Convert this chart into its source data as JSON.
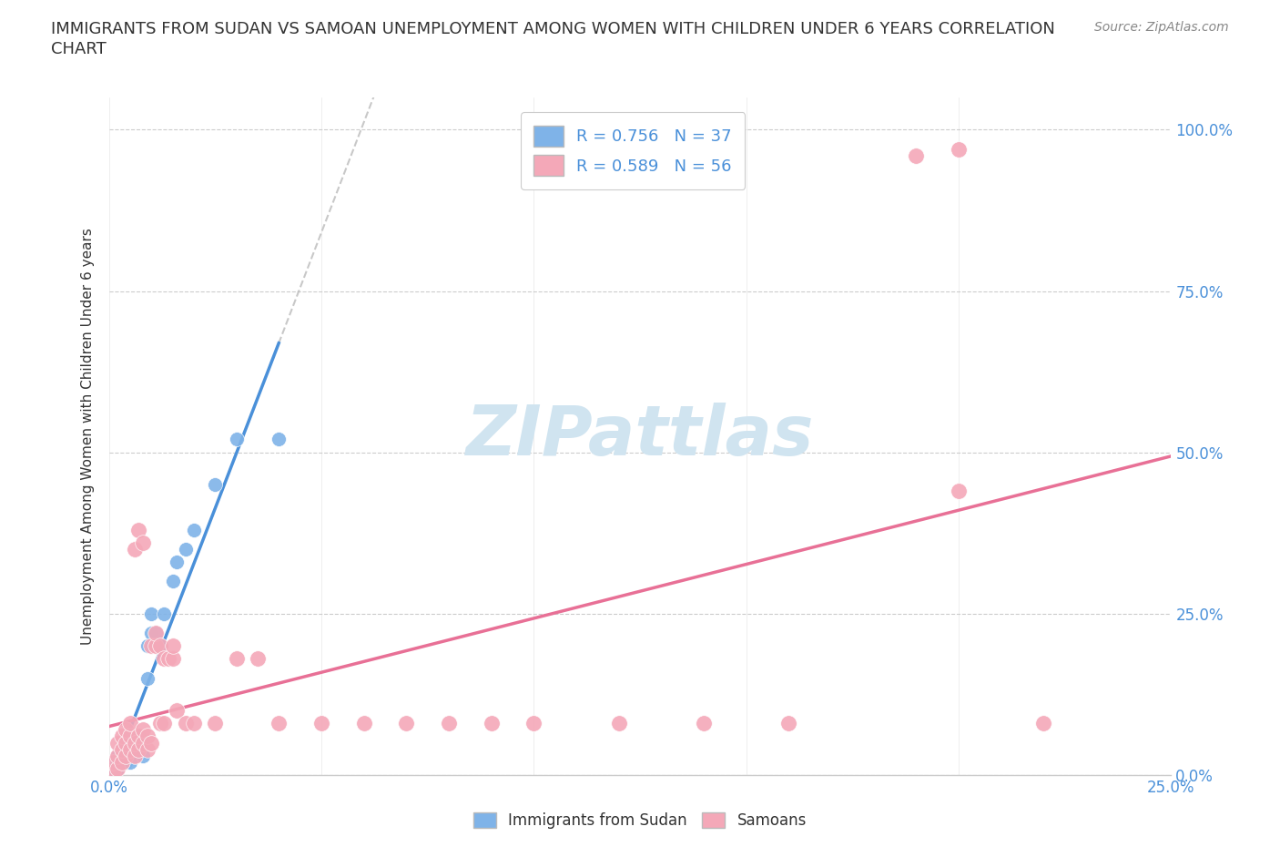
{
  "title": "IMMIGRANTS FROM SUDAN VS SAMOAN UNEMPLOYMENT AMONG WOMEN WITH CHILDREN UNDER 6 YEARS CORRELATION\nCHART",
  "source": "Source: ZipAtlas.com",
  "xlabel": "",
  "ylabel": "Unemployment Among Women with Children Under 6 years",
  "xlim": [
    0.0,
    0.25
  ],
  "ylim": [
    0.0,
    1.05
  ],
  "xticks": [
    0.0,
    0.05,
    0.1,
    0.15,
    0.2,
    0.25
  ],
  "xtick_labels": [
    "0.0%",
    "",
    "",
    "",
    "",
    "25.0%"
  ],
  "ytick_labels": [
    "0.0%",
    "25.0%",
    "50.0%",
    "75.0%",
    "100.0%"
  ],
  "yticks": [
    0.0,
    0.25,
    0.5,
    0.75,
    1.0
  ],
  "sudan_color": "#7fb3e8",
  "samoan_color": "#f4a8b8",
  "sudan_line_color": "#4a90d9",
  "samoan_line_color": "#e87096",
  "sudan_R": 0.756,
  "sudan_N": 37,
  "samoan_R": 0.589,
  "samoan_N": 56,
  "legend_label_sudan": "Immigrants from Sudan",
  "legend_label_samoan": "Samoans",
  "sudan_points": [
    [
      0.0005,
      0.005
    ],
    [
      0.001,
      0.01
    ],
    [
      0.001,
      0.02
    ],
    [
      0.0015,
      0.015
    ],
    [
      0.002,
      0.01
    ],
    [
      0.002,
      0.02
    ],
    [
      0.002,
      0.03
    ],
    [
      0.003,
      0.02
    ],
    [
      0.003,
      0.03
    ],
    [
      0.003,
      0.04
    ],
    [
      0.004,
      0.02
    ],
    [
      0.004,
      0.03
    ],
    [
      0.004,
      0.05
    ],
    [
      0.005,
      0.02
    ],
    [
      0.005,
      0.04
    ],
    [
      0.005,
      0.06
    ],
    [
      0.006,
      0.03
    ],
    [
      0.006,
      0.05
    ],
    [
      0.007,
      0.04
    ],
    [
      0.007,
      0.06
    ],
    [
      0.008,
      0.03
    ],
    [
      0.008,
      0.05
    ],
    [
      0.009,
      0.15
    ],
    [
      0.009,
      0.2
    ],
    [
      0.01,
      0.22
    ],
    [
      0.01,
      0.25
    ],
    [
      0.011,
      0.2
    ],
    [
      0.011,
      0.22
    ],
    [
      0.012,
      0.2
    ],
    [
      0.013,
      0.25
    ],
    [
      0.015,
      0.3
    ],
    [
      0.016,
      0.33
    ],
    [
      0.018,
      0.35
    ],
    [
      0.02,
      0.38
    ],
    [
      0.025,
      0.45
    ],
    [
      0.03,
      0.52
    ],
    [
      0.04,
      0.52
    ]
  ],
  "samoan_points": [
    [
      0.001,
      0.005
    ],
    [
      0.001,
      0.02
    ],
    [
      0.002,
      0.01
    ],
    [
      0.002,
      0.03
    ],
    [
      0.002,
      0.05
    ],
    [
      0.003,
      0.02
    ],
    [
      0.003,
      0.04
    ],
    [
      0.003,
      0.06
    ],
    [
      0.004,
      0.03
    ],
    [
      0.004,
      0.05
    ],
    [
      0.004,
      0.07
    ],
    [
      0.005,
      0.04
    ],
    [
      0.005,
      0.06
    ],
    [
      0.005,
      0.08
    ],
    [
      0.006,
      0.03
    ],
    [
      0.006,
      0.05
    ],
    [
      0.006,
      0.35
    ],
    [
      0.007,
      0.04
    ],
    [
      0.007,
      0.06
    ],
    [
      0.007,
      0.38
    ],
    [
      0.008,
      0.05
    ],
    [
      0.008,
      0.07
    ],
    [
      0.008,
      0.36
    ],
    [
      0.009,
      0.04
    ],
    [
      0.009,
      0.06
    ],
    [
      0.01,
      0.05
    ],
    [
      0.01,
      0.2
    ],
    [
      0.011,
      0.2
    ],
    [
      0.011,
      0.22
    ],
    [
      0.012,
      0.08
    ],
    [
      0.012,
      0.2
    ],
    [
      0.013,
      0.08
    ],
    [
      0.013,
      0.18
    ],
    [
      0.014,
      0.18
    ],
    [
      0.015,
      0.18
    ],
    [
      0.015,
      0.2
    ],
    [
      0.016,
      0.1
    ],
    [
      0.018,
      0.08
    ],
    [
      0.02,
      0.08
    ],
    [
      0.025,
      0.08
    ],
    [
      0.03,
      0.18
    ],
    [
      0.035,
      0.18
    ],
    [
      0.04,
      0.08
    ],
    [
      0.05,
      0.08
    ],
    [
      0.06,
      0.08
    ],
    [
      0.07,
      0.08
    ],
    [
      0.08,
      0.08
    ],
    [
      0.09,
      0.08
    ],
    [
      0.1,
      0.08
    ],
    [
      0.12,
      0.08
    ],
    [
      0.14,
      0.08
    ],
    [
      0.16,
      0.08
    ],
    [
      0.19,
      0.96
    ],
    [
      0.2,
      0.97
    ],
    [
      0.2,
      0.44
    ],
    [
      0.22,
      0.08
    ]
  ],
  "background_color": "#ffffff",
  "grid_color": "#e0e0e0",
  "title_color": "#333333",
  "axis_label_color": "#4a90d9",
  "watermark_color": "#d0e4f0"
}
